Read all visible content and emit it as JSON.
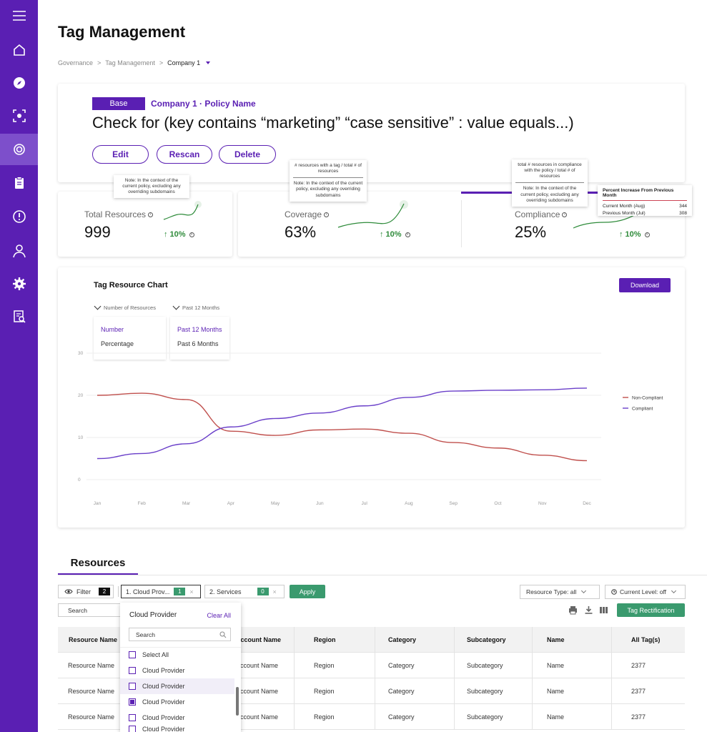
{
  "page": {
    "title": "Tag Management"
  },
  "breadcrumb": {
    "items": [
      "Governance",
      "Tag Management"
    ],
    "separator": ">",
    "current": "Company 1"
  },
  "sidebar": {
    "items": [
      {
        "name": "menu-icon"
      },
      {
        "name": "home-icon"
      },
      {
        "name": "compass-icon"
      },
      {
        "name": "scan-icon"
      },
      {
        "name": "tag-cycle-icon",
        "active": true
      },
      {
        "name": "clipboard-icon"
      },
      {
        "name": "alert-icon"
      },
      {
        "name": "user-icon"
      },
      {
        "name": "gear-icon"
      },
      {
        "name": "report-icon"
      }
    ]
  },
  "policy": {
    "badge": "Base",
    "name": "Company 1 · Policy Name",
    "check_text": "Check for (key contains “marketing” “case sensitive” : value equals...)",
    "buttons": {
      "edit": "Edit",
      "rescan": "Rescan",
      "delete": "Delete"
    }
  },
  "metrics": {
    "total": {
      "label": "Total Resources",
      "value": "999",
      "trend": "10%",
      "tooltip": "Note: In the context of the current policy, excluding any overriding subdomains"
    },
    "coverage": {
      "label": "Coverage",
      "value": "63%",
      "trend": "10%",
      "tooltip_top": "# resources with a tag / total # of resources",
      "tooltip_note": "Note: In the context of the current policy, excluding any overriding subdomains"
    },
    "compliance": {
      "label": "Compliance",
      "value": "25%",
      "trend": "10%",
      "tooltip_top": "total # resources in compliance with the policy / total # of resources",
      "tooltip_note": "Note: In the context of the current policy, excluding any overriding subdomains"
    }
  },
  "pct_tooltip": {
    "title": "Percent Increase From Previous Month",
    "rows": [
      {
        "label": "Current Month (Aug)",
        "value": "344"
      },
      {
        "label": "Previous Month (Jul)",
        "value": "308"
      }
    ]
  },
  "chart": {
    "title": "Tag Resource Chart",
    "download": "Download",
    "dropdown_metric": {
      "label": "Number of Resources",
      "options": [
        "Number",
        "Percentage"
      ]
    },
    "dropdown_period": {
      "label": "Past 12 Months",
      "options": [
        "Past 12 Months",
        "Past 6 Months"
      ]
    }
  },
  "chart_data": {
    "type": "line",
    "title": "Tag Resource Chart",
    "categories": [
      "Jan",
      "Feb",
      "Mar",
      "Apr",
      "May",
      "Jun",
      "Jul",
      "Aug",
      "Sep",
      "Oct",
      "Nov",
      "Dec"
    ],
    "y_ticks": [
      "0",
      "10",
      "20",
      "30"
    ],
    "ylim": [
      0,
      30
    ],
    "series": [
      {
        "name": "Non-Compliant",
        "color": "#c0504d",
        "values": [
          20,
          20.5,
          19,
          11.5,
          10.5,
          11.8,
          12,
          11,
          8.8,
          7.5,
          5.8,
          4.5
        ]
      },
      {
        "name": "Compliant",
        "color": "#6a3fc9",
        "values": [
          5,
          6.2,
          8.5,
          12.5,
          14.5,
          15.8,
          17.5,
          19.5,
          21,
          21.2,
          21.3,
          21.7
        ]
      }
    ],
    "legend": "right",
    "grid": true
  },
  "resources": {
    "tab": "Resources",
    "filter_label": "Filter",
    "filter_count": "2",
    "filter1": {
      "label": "1. Cloud Prov...",
      "count": "1"
    },
    "filter2": {
      "label": "2. Services",
      "count": "0"
    },
    "apply": "Apply",
    "resource_type": "Resource Type: all",
    "current_level": "Current Level: off",
    "search_placeholder": "Search",
    "tag_rectification": "Tag Rectification",
    "columns": [
      "Resource Name",
      "Account Name",
      "Region",
      "Category",
      "Subcategory",
      "Name",
      "All Tag(s)"
    ],
    "rows": [
      [
        "Resource Name",
        "Account Name",
        "Region",
        "Category",
        "Subcategory",
        "Name",
        "2377"
      ],
      [
        "Resource Name",
        "Account Name",
        "Region",
        "Category",
        "Subcategory",
        "Name",
        "2377"
      ],
      [
        "Resource Name",
        "Account Name",
        "Region",
        "Category",
        "Subcategory",
        "Name",
        "2377"
      ]
    ]
  },
  "cloud_dropdown": {
    "title": "Cloud Provider",
    "clear": "Clear All",
    "search_placeholder": "Search",
    "options": [
      {
        "label": "Select All",
        "checked": false
      },
      {
        "label": "Cloud Provider",
        "checked": false
      },
      {
        "label": "Cloud Provider",
        "checked": false
      },
      {
        "label": "Cloud Provider",
        "checked": true
      },
      {
        "label": "Cloud Provider",
        "checked": false
      },
      {
        "label": "Cloud Provider",
        "checked": false
      }
    ]
  }
}
